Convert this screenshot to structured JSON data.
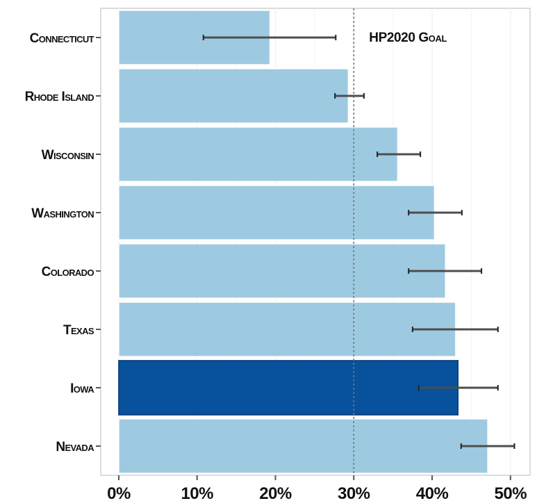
{
  "chart_data": {
    "type": "bar",
    "orientation": "horizontal",
    "categories": [
      "Connecticut",
      "Rhode Island",
      "Wisconsin",
      "Washington",
      "Colorado",
      "Texas",
      "Iowa",
      "Nevada"
    ],
    "values": [
      19.3,
      29.3,
      35.6,
      40.3,
      41.7,
      43.0,
      43.3,
      47.1
    ],
    "error_low": [
      10.8,
      27.6,
      33.0,
      37.0,
      37.0,
      37.5,
      38.3,
      43.7
    ],
    "error_high": [
      27.7,
      31.3,
      38.5,
      43.8,
      46.3,
      48.4,
      48.4,
      50.5
    ],
    "highlighted": "Iowa",
    "xlim": [
      -2.3,
      52.5
    ],
    "xticks": [
      "0%",
      "10%",
      "20%",
      "30%",
      "40%",
      "50%"
    ],
    "xtick_values": [
      0,
      10,
      20,
      30,
      40,
      50
    ],
    "reference_line": {
      "value": 30,
      "label": "HP2020 Goal"
    },
    "grid": true,
    "colors": {
      "bar": "#9ecae1",
      "bar_highlight": "#08519c",
      "bar_edge": "#ffffff",
      "panel_border": "#d0d0d0",
      "grid": "#f2f2f2",
      "error": "#4d4d4d",
      "reference": "#777777"
    }
  }
}
